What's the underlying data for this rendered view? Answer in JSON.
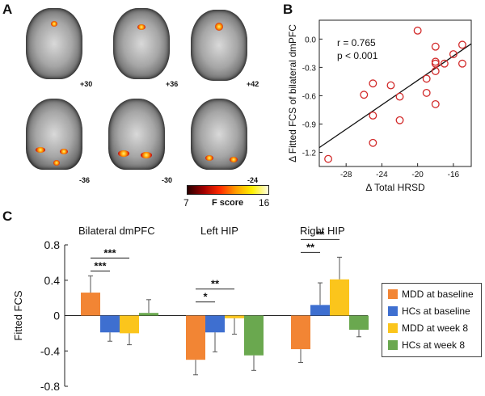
{
  "panel_a": {
    "letter": "A",
    "axial_labels": [
      "+30",
      "+36",
      "+42"
    ],
    "coronal_labels": [
      "-36",
      "-30",
      "-24"
    ],
    "colorbar": {
      "min": "7",
      "max": "16",
      "title": "F score"
    }
  },
  "panel_b": {
    "letter": "B",
    "chart_data": {
      "type": "scatter",
      "title": "",
      "xlabel": "Δ Total HRSD",
      "ylabel": "Δ Fitted FCS of bilateral dmPFC",
      "xlim": [
        -31,
        -14
      ],
      "ylim": [
        -1.35,
        0.2
      ],
      "xticks": [
        "-28",
        "-24",
        "-20",
        "-16"
      ],
      "yticks": [
        "0.0",
        "-0.3",
        "-0.6",
        "-0.9",
        "-1.2"
      ],
      "annotation_r": "r = 0.765",
      "annotation_p": "p < 0.001",
      "points": [
        {
          "x": -30,
          "y": -1.27
        },
        {
          "x": -26,
          "y": -0.59
        },
        {
          "x": -25,
          "y": -0.47
        },
        {
          "x": -25,
          "y": -0.81
        },
        {
          "x": -25,
          "y": -1.1
        },
        {
          "x": -23,
          "y": -0.49
        },
        {
          "x": -22,
          "y": -0.61
        },
        {
          "x": -22,
          "y": -0.86
        },
        {
          "x": -20,
          "y": 0.09
        },
        {
          "x": -19,
          "y": -0.42
        },
        {
          "x": -19,
          "y": -0.57
        },
        {
          "x": -18,
          "y": -0.08
        },
        {
          "x": -18,
          "y": -0.24
        },
        {
          "x": -18,
          "y": -0.26
        },
        {
          "x": -18,
          "y": -0.34
        },
        {
          "x": -18,
          "y": -0.69
        },
        {
          "x": -17,
          "y": -0.26
        },
        {
          "x": -16,
          "y": -0.16
        },
        {
          "x": -15,
          "y": -0.06
        },
        {
          "x": -15,
          "y": -0.26
        }
      ],
      "fit_line": {
        "x": [
          -31,
          -14
        ],
        "y": [
          -1.15,
          -0.05
        ]
      },
      "marker_color": "#d22a2a"
    }
  },
  "panel_c": {
    "letter": "C",
    "chart_data": {
      "type": "bar",
      "ylabel": "Fitted FCS",
      "ylim": [
        -0.8,
        0.8
      ],
      "yticks": [
        "0.8",
        "0.4",
        "0",
        "-0.4",
        "-0.8"
      ],
      "groups": [
        "Bilateral dmPFC",
        "Left HIP",
        "Right HIP"
      ],
      "series": [
        {
          "name": "MDD at baseline",
          "color": "#f28534",
          "values": [
            0.26,
            -0.5,
            -0.38
          ],
          "err": [
            0.19,
            0.17,
            0.15
          ]
        },
        {
          "name": "HCs at baseline",
          "color": "#3e6fd0",
          "values": [
            -0.19,
            -0.19,
            0.12
          ],
          "err": [
            0.1,
            0.22,
            0.25
          ]
        },
        {
          "name": "MDD at week 8",
          "color": "#fbc51c",
          "values": [
            -0.2,
            -0.03,
            0.41
          ],
          "err": [
            0.13,
            0.18,
            0.25
          ]
        },
        {
          "name": "HCs at week 8",
          "color": "#6aa84f",
          "values": [
            0.03,
            -0.45,
            -0.16
          ],
          "err": [
            0.15,
            0.17,
            0.08
          ]
        }
      ],
      "significance": [
        {
          "group": 0,
          "from": 0,
          "to": 1,
          "label": "***"
        },
        {
          "group": 0,
          "from": 0,
          "to": 2,
          "label": "***"
        },
        {
          "group": 1,
          "from": 0,
          "to": 1,
          "label": "*"
        },
        {
          "group": 1,
          "from": 0,
          "to": 2,
          "label": "**"
        },
        {
          "group": 2,
          "from": 0,
          "to": 1,
          "label": "**"
        },
        {
          "group": 2,
          "from": 0,
          "to": 2,
          "label": "**"
        }
      ]
    }
  }
}
